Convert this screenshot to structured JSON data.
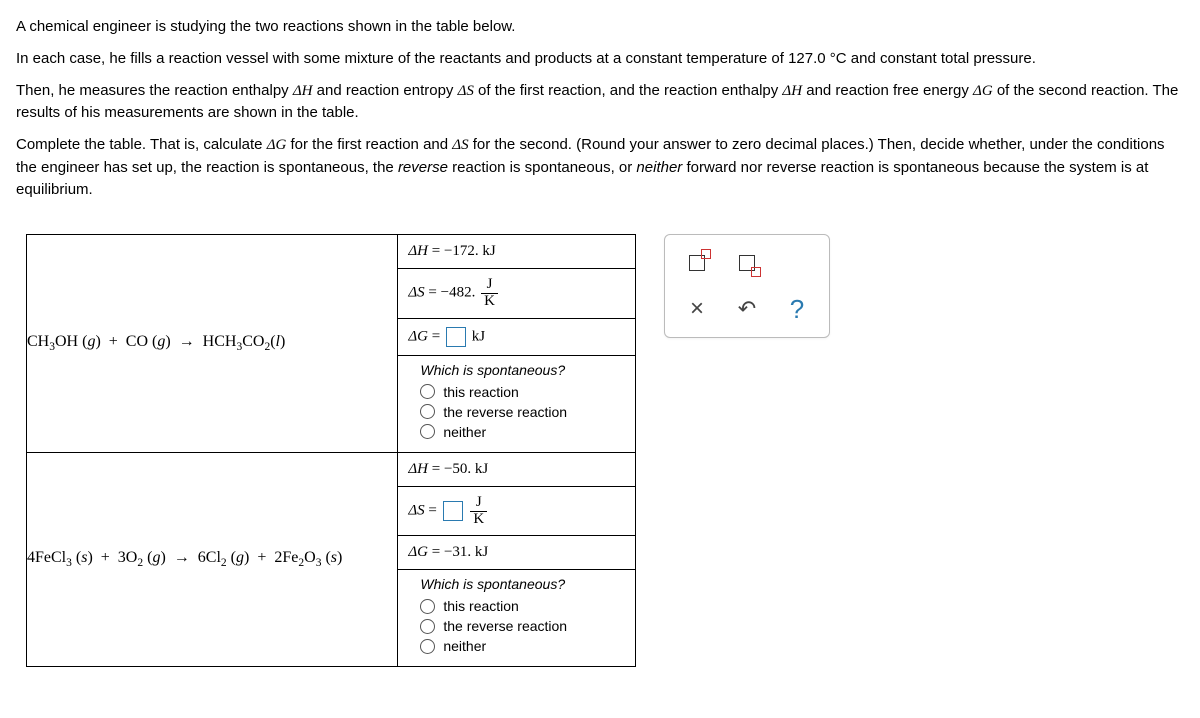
{
  "intro": {
    "p1": "A chemical engineer is studying the two reactions shown in the table below.",
    "p2_a": "In each case, he fills a reaction vessel with some mixture of the reactants and products at a constant temperature of ",
    "p2_temp": "127.0 °C",
    "p2_b": " and constant total pressure.",
    "p3_a": "Then, he measures the reaction enthalpy ",
    "p3_dH": "ΔH",
    "p3_b": " and reaction entropy ",
    "p3_dS": "ΔS",
    "p3_c": " of the first reaction, and the reaction enthalpy ",
    "p3_dH2": "ΔH",
    "p3_d": " and reaction free energy ",
    "p3_dG": "ΔG",
    "p3_e": " of the second reaction. The results of his measurements are shown in the table.",
    "p4_a": "Complete the table. That is, calculate ",
    "p4_dG": "ΔG",
    "p4_b": " for the first reaction and ",
    "p4_dS": "ΔS",
    "p4_c": " for the second. (Round your answer to zero decimal places.) Then, decide whether, under the conditions the engineer has set up, the reaction is spontaneous, the ",
    "p4_rev": "reverse",
    "p4_d": " reaction is spontaneous, or ",
    "p4_neither": "neither",
    "p4_e": " forward nor reverse reaction is spontaneous because the system is at equilibrium."
  },
  "rxn1": {
    "dH_label": "ΔH",
    "dH_value": " =  −172. kJ",
    "dS_label": "ΔS",
    "dS_value": " =  −482. ",
    "dS_unit_n": "J",
    "dS_unit_d": "K",
    "dG_label": "ΔG",
    "dG_eq": " = ",
    "dG_unit": " kJ"
  },
  "rxn2": {
    "dH_label": "ΔH",
    "dH_value": " =  −50. kJ",
    "dS_label": "ΔS",
    "dS_eq": " = ",
    "dS_unit_n": "J",
    "dS_unit_d": "K",
    "dG_label": "ΔG",
    "dG_value": " =  −31. kJ"
  },
  "spont": {
    "title": "Which is spontaneous?",
    "opt1": "this reaction",
    "opt2": "the reverse reaction",
    "opt3": "neither"
  },
  "toolbar": {
    "close": "×",
    "undo": "↶",
    "help": "?"
  },
  "colors": {
    "input_border": "#2a7ab0",
    "help_color": "#2a7ab0",
    "sup_box": "#c33"
  }
}
